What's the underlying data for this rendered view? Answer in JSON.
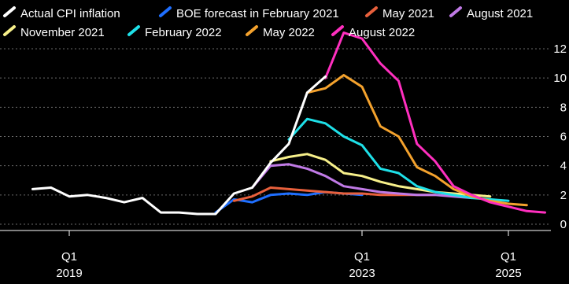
{
  "chart_data": {
    "type": "line",
    "title": "",
    "xlabel": "",
    "ylabel": "",
    "ylim": [
      0,
      12
    ],
    "yticks": [
      0,
      2,
      4,
      6,
      8,
      10,
      12
    ],
    "ytick_labels": [
      "0",
      "2",
      "4",
      "6",
      "8",
      "10",
      "12"
    ],
    "xlim": [
      "2018-07",
      "2025-10"
    ],
    "xticks": [
      {
        "date": "2019-01",
        "quarter": "Q1",
        "year": "2019"
      },
      {
        "date": "2023-01",
        "quarter": "Q1",
        "year": "2023"
      },
      {
        "date": "2025-01",
        "quarter": "Q1",
        "year": "2025"
      }
    ],
    "grid": "horizontal dotted",
    "legend_position": "top-left",
    "series": [
      {
        "name": "Actual CPI inflation",
        "color": "#ffffff",
        "points": [
          [
            "2018-07",
            2.4
          ],
          [
            "2018-10",
            2.5
          ],
          [
            "2019-01",
            1.9
          ],
          [
            "2019-04",
            2.0
          ],
          [
            "2019-07",
            1.8
          ],
          [
            "2019-10",
            1.5
          ],
          [
            "2020-01",
            1.8
          ],
          [
            "2020-04",
            0.8
          ],
          [
            "2020-07",
            0.8
          ],
          [
            "2020-10",
            0.7
          ],
          [
            "2021-01",
            0.7
          ],
          [
            "2021-04",
            2.1
          ],
          [
            "2021-07",
            2.5
          ],
          [
            "2021-10",
            4.2
          ],
          [
            "2022-01",
            5.5
          ],
          [
            "2022-04",
            9.0
          ],
          [
            "2022-07",
            10.1
          ]
        ]
      },
      {
        "name": "BOE forecast in February 2021",
        "color": "#1f6fff",
        "points": [
          [
            "2021-01",
            0.8
          ],
          [
            "2021-04",
            1.7
          ],
          [
            "2021-07",
            1.5
          ],
          [
            "2021-10",
            2.0
          ],
          [
            "2022-01",
            2.1
          ],
          [
            "2022-04",
            2.0
          ],
          [
            "2022-07",
            2.2
          ],
          [
            "2022-10",
            2.1
          ],
          [
            "2023-01",
            2.0
          ]
        ]
      },
      {
        "name": "May 2021",
        "color": "#e8603c",
        "points": [
          [
            "2021-04",
            1.6
          ],
          [
            "2021-07",
            1.9
          ],
          [
            "2021-10",
            2.5
          ],
          [
            "2022-01",
            2.4
          ],
          [
            "2022-04",
            2.3
          ],
          [
            "2022-07",
            2.2
          ],
          [
            "2022-10",
            2.1
          ],
          [
            "2023-01",
            2.1
          ],
          [
            "2023-04",
            2.0
          ],
          [
            "2023-07",
            2.0
          ],
          [
            "2023-10",
            2.0
          ],
          [
            "2024-01",
            2.0
          ]
        ]
      },
      {
        "name": "August 2021",
        "color": "#c07ae6",
        "points": [
          [
            "2021-07",
            2.5
          ],
          [
            "2021-10",
            4.0
          ],
          [
            "2022-01",
            4.1
          ],
          [
            "2022-04",
            3.8
          ],
          [
            "2022-07",
            3.3
          ],
          [
            "2022-10",
            2.6
          ],
          [
            "2023-01",
            2.4
          ],
          [
            "2023-04",
            2.2
          ],
          [
            "2023-07",
            2.1
          ],
          [
            "2023-10",
            2.0
          ],
          [
            "2024-01",
            2.0
          ],
          [
            "2024-04",
            1.9
          ],
          [
            "2024-07",
            1.8
          ]
        ]
      },
      {
        "name": "November 2021",
        "color": "#f7f08a",
        "points": [
          [
            "2021-10",
            4.3
          ],
          [
            "2022-01",
            4.6
          ],
          [
            "2022-04",
            4.8
          ],
          [
            "2022-07",
            4.4
          ],
          [
            "2022-10",
            3.5
          ],
          [
            "2023-01",
            3.3
          ],
          [
            "2023-04",
            2.9
          ],
          [
            "2023-07",
            2.6
          ],
          [
            "2023-10",
            2.4
          ],
          [
            "2024-01",
            2.2
          ],
          [
            "2024-04",
            2.1
          ],
          [
            "2024-07",
            2.0
          ],
          [
            "2024-10",
            1.9
          ]
        ]
      },
      {
        "name": "February 2022",
        "color": "#1ee0e8",
        "points": [
          [
            "2022-01",
            5.8
          ],
          [
            "2022-04",
            7.2
          ],
          [
            "2022-07",
            6.9
          ],
          [
            "2022-10",
            6.0
          ],
          [
            "2023-01",
            5.4
          ],
          [
            "2023-04",
            3.8
          ],
          [
            "2023-07",
            3.5
          ],
          [
            "2023-10",
            2.6
          ],
          [
            "2024-01",
            2.2
          ],
          [
            "2024-04",
            2.0
          ],
          [
            "2024-07",
            1.8
          ],
          [
            "2024-10",
            1.7
          ],
          [
            "2025-01",
            1.6
          ]
        ]
      },
      {
        "name": "May 2022",
        "color": "#f4a22d",
        "points": [
          [
            "2022-04",
            9.0
          ],
          [
            "2022-07",
            9.3
          ],
          [
            "2022-10",
            10.2
          ],
          [
            "2023-01",
            9.4
          ],
          [
            "2023-04",
            6.7
          ],
          [
            "2023-07",
            6.0
          ],
          [
            "2023-10",
            3.9
          ],
          [
            "2024-01",
            3.3
          ],
          [
            "2024-04",
            2.4
          ],
          [
            "2024-07",
            1.9
          ],
          [
            "2024-10",
            1.6
          ],
          [
            "2025-01",
            1.4
          ],
          [
            "2025-04",
            1.3
          ]
        ]
      },
      {
        "name": "August 2022",
        "color": "#ff2fbf",
        "points": [
          [
            "2022-07",
            10.0
          ],
          [
            "2022-10",
            13.1
          ],
          [
            "2023-01",
            12.7
          ],
          [
            "2023-04",
            11.0
          ],
          [
            "2023-07",
            9.8
          ],
          [
            "2023-10",
            5.5
          ],
          [
            "2024-01",
            4.3
          ],
          [
            "2024-04",
            2.6
          ],
          [
            "2024-07",
            2.0
          ],
          [
            "2024-10",
            1.5
          ],
          [
            "2025-01",
            1.2
          ],
          [
            "2025-04",
            0.9
          ],
          [
            "2025-07",
            0.8
          ]
        ]
      }
    ]
  }
}
